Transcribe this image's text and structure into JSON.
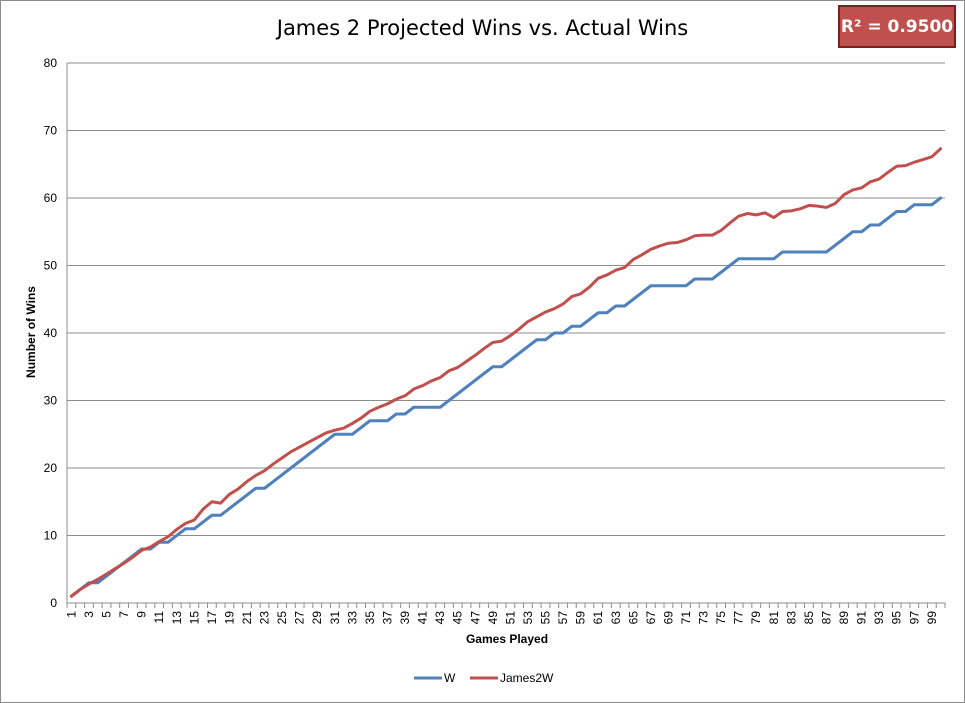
{
  "chart_data": {
    "type": "line",
    "title": "James 2 Projected Wins vs. Actual Wins",
    "annotation": "R² = 0.9500",
    "xlabel": "Games Played",
    "ylabel": "Number of Wins",
    "ylim": [
      0,
      80
    ],
    "yticks": [
      0,
      10,
      20,
      30,
      40,
      50,
      60,
      70,
      80
    ],
    "x": [
      1,
      2,
      3,
      4,
      5,
      6,
      7,
      8,
      9,
      10,
      11,
      12,
      13,
      14,
      15,
      16,
      17,
      18,
      19,
      20,
      21,
      22,
      23,
      24,
      25,
      26,
      27,
      28,
      29,
      30,
      31,
      32,
      33,
      34,
      35,
      36,
      37,
      38,
      39,
      40,
      41,
      42,
      43,
      44,
      45,
      46,
      47,
      48,
      49,
      50,
      51,
      52,
      53,
      54,
      55,
      56,
      57,
      58,
      59,
      60,
      61,
      62,
      63,
      64,
      65,
      66,
      67,
      68,
      69,
      70,
      71,
      72,
      73,
      74,
      75,
      76,
      77,
      78,
      79,
      80,
      81,
      82,
      83,
      84,
      85,
      86,
      87,
      88,
      89,
      90,
      91,
      92,
      93,
      94,
      95,
      96,
      97,
      98,
      99,
      100
    ],
    "xtick_labels": [
      "1",
      "3",
      "5",
      "7",
      "9",
      "11",
      "13",
      "15",
      "17",
      "19",
      "21",
      "23",
      "25",
      "27",
      "29",
      "31",
      "33",
      "35",
      "37",
      "39",
      "41",
      "43",
      "45",
      "47",
      "49",
      "51",
      "53",
      "55",
      "57",
      "59",
      "61",
      "63",
      "65",
      "67",
      "69",
      "71",
      "73",
      "75",
      "77",
      "79",
      "81",
      "83",
      "85",
      "87",
      "89",
      "91",
      "93",
      "95",
      "97",
      "99"
    ],
    "grid": true,
    "legend_position": "bottom",
    "series": [
      {
        "name": "W",
        "color": "#4f81bd",
        "values": [
          1,
          2,
          3,
          3,
          4,
          5,
          6,
          7,
          8,
          8,
          9,
          9,
          10,
          11,
          11,
          12,
          13,
          13,
          14,
          15,
          16,
          17,
          17,
          18,
          19,
          20,
          21,
          22,
          23,
          24,
          25,
          25,
          25,
          26,
          27,
          27,
          27,
          28,
          28,
          29,
          29,
          29,
          29,
          30,
          31,
          32,
          33,
          34,
          35,
          35,
          36,
          37,
          38,
          39,
          39,
          40,
          40,
          41,
          41,
          42,
          43,
          43,
          44,
          44,
          45,
          46,
          47,
          47,
          47,
          47,
          47,
          48,
          48,
          48,
          49,
          50,
          51,
          51,
          51,
          51,
          51,
          52,
          52,
          52,
          52,
          52,
          52,
          53,
          54,
          55,
          55,
          56,
          56,
          57,
          58,
          58,
          59,
          59,
          59,
          60
        ]
      },
      {
        "name": "James2W",
        "color": "#c0504d",
        "values": [
          1,
          2,
          2.8,
          3.5,
          4.3,
          5.1,
          5.9,
          6.8,
          7.8,
          8.3,
          9.1,
          9.8,
          10.9,
          11.8,
          12.3,
          13.9,
          15,
          14.8,
          16.1,
          16.9,
          18,
          18.9,
          19.6,
          20.6,
          21.5,
          22.4,
          23.1,
          23.8,
          24.5,
          25.2,
          25.6,
          25.9,
          26.6,
          27.4,
          28.4,
          29,
          29.5,
          30.2,
          30.7,
          31.7,
          32.2,
          32.9,
          33.4,
          34.4,
          34.9,
          35.8,
          36.7,
          37.7,
          38.6,
          38.8,
          39.6,
          40.6,
          41.7,
          42.4,
          43.1,
          43.6,
          44.3,
          45.4,
          45.8,
          46.8,
          48.1,
          48.6,
          49.3,
          49.7,
          50.9,
          51.6,
          52.4,
          52.9,
          53.3,
          53.4,
          53.8,
          54.4,
          54.5,
          54.5,
          55.2,
          56.3,
          57.3,
          57.7,
          57.5,
          57.8,
          57.1,
          58,
          58.1,
          58.4,
          58.9,
          58.8,
          58.6,
          59.2,
          60.5,
          61.2,
          61.5,
          62.4,
          62.8,
          63.8,
          64.7,
          64.8,
          65.3,
          65.7,
          66.1,
          67.3
        ]
      }
    ]
  }
}
